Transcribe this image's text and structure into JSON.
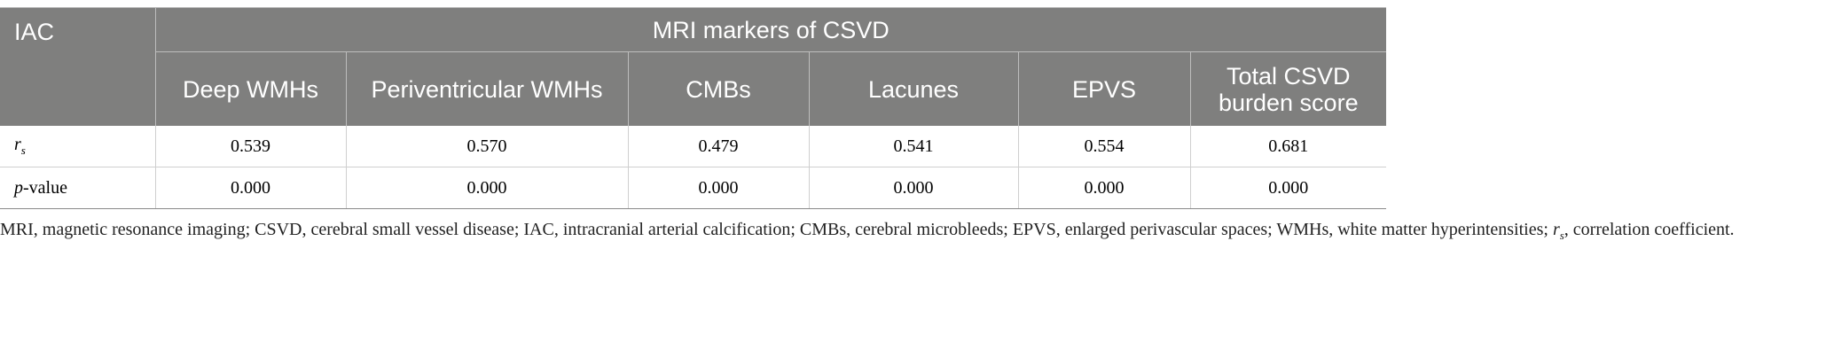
{
  "table": {
    "header": {
      "corner": "IAC",
      "group": "MRI markers of CSVD",
      "columns": [
        "Deep WMHs",
        "Periventricular WMHs",
        "CMBs",
        "Lacunes",
        "EPVS",
        "Total CSVD burden score"
      ]
    },
    "rows": [
      {
        "label": {
          "italic": "r",
          "sub": "s"
        },
        "cells": [
          "0.539",
          "0.570",
          "0.479",
          "0.541",
          "0.554",
          "0.681"
        ]
      },
      {
        "label": {
          "italic": "p",
          "rest": "-value"
        },
        "cells": [
          "0.000",
          "0.000",
          "0.000",
          "0.000",
          "0.000",
          "0.000"
        ]
      }
    ]
  },
  "footnote": {
    "text": "MRI, magnetic resonance imaging; CSVD, cerebral small vessel disease; IAC, intracranial arterial calcification; CMBs, cerebral microbleeds; EPVS, enlarged perivascular spaces; WMHs, white matter hyperintensities; ",
    "italic": "r",
    "sub": "s",
    "rest": ", correlation coefficient."
  }
}
